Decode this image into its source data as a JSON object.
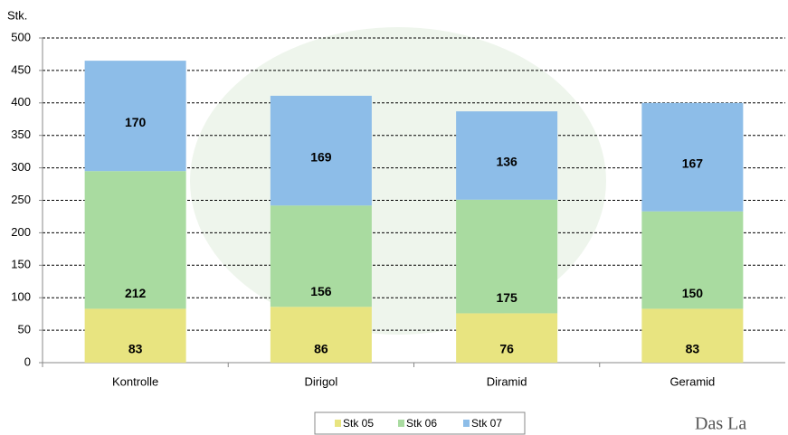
{
  "chart_data": {
    "type": "bar",
    "stacked": true,
    "y_label": "Stk.",
    "categories": [
      "Kontrolle",
      "Dirigol",
      "Diramid",
      "Geramid"
    ],
    "series": [
      {
        "name": "Stk 05",
        "color": "#e8e480",
        "values": [
          83,
          86,
          76,
          83
        ]
      },
      {
        "name": "Stk 06",
        "color": "#a9dba0",
        "values": [
          212,
          156,
          175,
          150
        ]
      },
      {
        "name": "Stk 07",
        "color": "#8dbde8",
        "values": [
          170,
          169,
          136,
          167
        ]
      }
    ],
    "ylim": [
      0,
      500
    ],
    "yticks": [
      0,
      50,
      100,
      150,
      200,
      250,
      300,
      350,
      400,
      450,
      500
    ],
    "grid": true,
    "legend": "bottom",
    "logo_text": "Das La"
  }
}
